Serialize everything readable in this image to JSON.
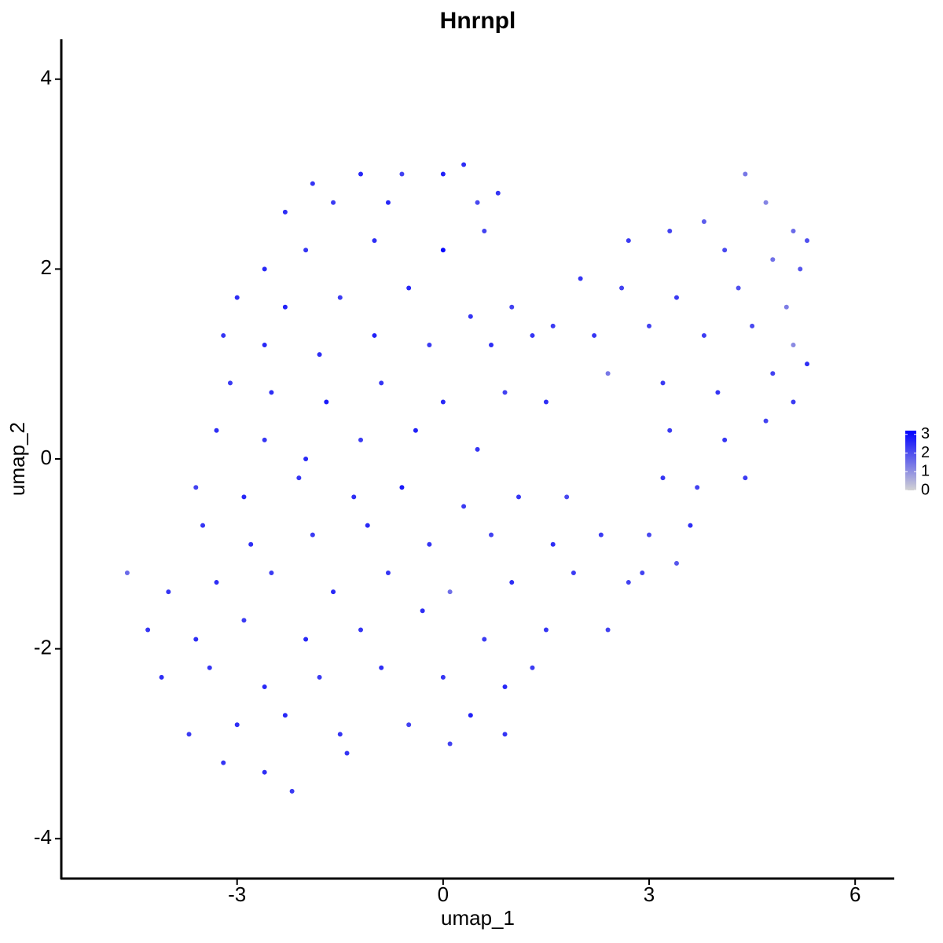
{
  "chart_data": {
    "type": "scatter",
    "title": "Hnrnpl",
    "x_label": "umap_1",
    "y_label": "umap_2",
    "xlim": [
      -5.56,
      6.57
    ],
    "ylim": [
      -4.42,
      4.42
    ],
    "xticks": [
      -3,
      0,
      3,
      6
    ],
    "yticks": [
      -4,
      -2,
      0,
      2,
      4
    ],
    "color_range": [
      0,
      3.2
    ],
    "colors": [
      "#d3d3d3",
      "#0000ff"
    ],
    "color_ticks": [
      0,
      1,
      2,
      3
    ],
    "x": [
      -1.9,
      -1.2,
      -0.6,
      0.3,
      0.0,
      -2.3,
      -1.6,
      -0.8,
      0.5,
      0.8,
      -2.6,
      -2.0,
      -1.0,
      0.0,
      0.6,
      -3.0,
      -2.3,
      -1.5,
      -0.5,
      0.4,
      1.0,
      -3.2,
      -2.6,
      -1.8,
      -1.0,
      -0.2,
      0.7,
      1.3,
      -3.1,
      -2.5,
      -1.7,
      -0.9,
      0.0,
      0.9,
      1.5,
      -3.3,
      -2.6,
      -2.0,
      -1.2,
      -0.4,
      0.5,
      -3.6,
      -2.9,
      -2.1,
      -1.3,
      -0.6,
      0.3,
      1.1,
      1.8,
      -3.5,
      -2.8,
      -1.9,
      -1.1,
      -0.2,
      0.7,
      1.6,
      2.3,
      -4.6,
      -4.0,
      -3.3,
      -2.5,
      -1.6,
      -0.8,
      0.1,
      1.0,
      1.9,
      2.7,
      -4.3,
      -3.6,
      -2.9,
      -2.0,
      -1.2,
      -0.3,
      0.6,
      1.5,
      2.4,
      -4.1,
      -3.4,
      -2.6,
      -1.8,
      -0.9,
      0.0,
      0.9,
      1.3,
      -3.7,
      -3.0,
      -2.3,
      -1.5,
      -0.5,
      0.4,
      0.9,
      -3.2,
      -2.6,
      -2.2,
      -1.4,
      0.1,
      3.8,
      4.4,
      4.7,
      5.1,
      5.3,
      2.7,
      3.3,
      4.1,
      4.8,
      5.2,
      2.0,
      2.6,
      3.4,
      4.3,
      5.0,
      1.6,
      2.2,
      3.0,
      3.8,
      4.5,
      5.1,
      2.4,
      3.2,
      4.0,
      4.8,
      5.3,
      3.3,
      4.1,
      4.7,
      5.1,
      3.2,
      3.7,
      4.4,
      3.0,
      3.6,
      2.9,
      3.4
    ],
    "y": [
      2.9,
      3.0,
      3.0,
      3.1,
      3.0,
      2.6,
      2.7,
      2.7,
      2.7,
      2.8,
      2.0,
      2.2,
      2.3,
      2.2,
      2.4,
      1.7,
      1.6,
      1.7,
      1.8,
      1.5,
      1.6,
      1.3,
      1.2,
      1.1,
      1.3,
      1.2,
      1.2,
      1.3,
      0.8,
      0.7,
      0.6,
      0.8,
      0.6,
      0.7,
      0.6,
      0.3,
      0.2,
      0.0,
      0.2,
      0.3,
      0.1,
      -0.3,
      -0.4,
      -0.2,
      -0.4,
      -0.3,
      -0.5,
      -0.4,
      -0.4,
      -0.7,
      -0.9,
      -0.8,
      -0.7,
      -0.9,
      -0.8,
      -0.9,
      -0.8,
      -1.2,
      -1.4,
      -1.3,
      -1.2,
      -1.4,
      -1.2,
      -1.4,
      -1.3,
      -1.2,
      -1.3,
      -1.8,
      -1.9,
      -1.7,
      -1.9,
      -1.8,
      -1.6,
      -1.9,
      -1.8,
      -1.8,
      -2.3,
      -2.2,
      -2.4,
      -2.3,
      -2.2,
      -2.3,
      -2.4,
      -2.2,
      -2.9,
      -2.8,
      -2.7,
      -2.9,
      -2.8,
      -2.7,
      -2.9,
      -3.2,
      -3.3,
      -3.5,
      -3.1,
      -3.0,
      2.5,
      3.0,
      2.7,
      2.4,
      2.3,
      2.3,
      2.4,
      2.2,
      2.1,
      2.0,
      1.9,
      1.8,
      1.7,
      1.8,
      1.6,
      1.4,
      1.3,
      1.4,
      1.3,
      1.4,
      1.2,
      0.9,
      0.8,
      0.7,
      0.9,
      1.0,
      0.3,
      0.2,
      0.4,
      0.6,
      -0.2,
      -0.3,
      -0.2,
      -0.8,
      -0.7,
      -1.2,
      -1.1
    ],
    "values": [
      2.4,
      2.6,
      2.2,
      2.5,
      2.7,
      2.5,
      2.3,
      2.6,
      2.1,
      2.4,
      2.6,
      2.4,
      2.5,
      3.1,
      2.2,
      2.5,
      2.7,
      2.3,
      2.6,
      2.4,
      2.2,
      2.4,
      2.6,
      2.5,
      2.7,
      2.3,
      2.5,
      2.4,
      2.3,
      2.5,
      2.8,
      2.4,
      2.6,
      2.2,
      2.5,
      2.5,
      2.4,
      2.6,
      2.3,
      2.7,
      2.4,
      2.2,
      2.6,
      2.4,
      2.5,
      2.8,
      2.3,
      2.4,
      2.1,
      2.4,
      2.5,
      2.3,
      2.6,
      2.4,
      2.2,
      2.5,
      2.3,
      1.6,
      2.4,
      2.5,
      2.3,
      2.6,
      2.4,
      1.5,
      2.5,
      2.3,
      2.2,
      2.4,
      2.5,
      2.3,
      2.6,
      2.4,
      2.5,
      2.3,
      2.4,
      2.2,
      2.5,
      2.4,
      2.6,
      2.3,
      2.5,
      2.4,
      2.6,
      2.3,
      2.3,
      2.5,
      2.6,
      2.4,
      2.2,
      2.7,
      2.4,
      2.4,
      2.5,
      2.3,
      2.4,
      2.2,
      1.8,
      1.4,
      1.2,
      1.6,
      2.0,
      2.3,
      2.2,
      2.1,
      1.5,
      1.9,
      2.4,
      2.2,
      2.3,
      2.0,
      1.3,
      2.3,
      2.4,
      2.2,
      2.3,
      2.1,
      1.1,
      1.4,
      2.3,
      2.4,
      2.2,
      2.5,
      2.3,
      2.4,
      2.2,
      2.3,
      2.4,
      2.2,
      2.3,
      2.1,
      2.5,
      2.2,
      1.9
    ]
  }
}
